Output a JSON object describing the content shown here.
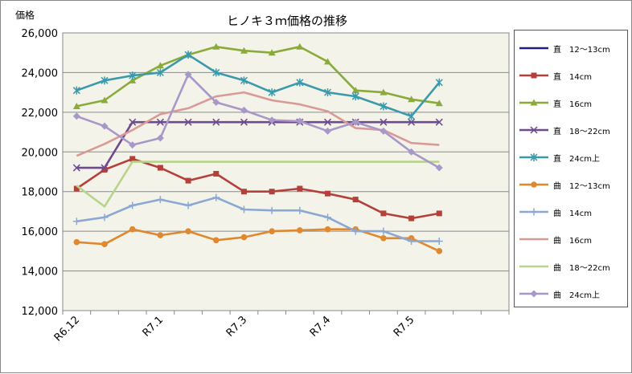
{
  "chart_data": {
    "type": "line",
    "title": "ヒノキ３ｍ価格の推移",
    "ylabel": "価格",
    "xlabel": "",
    "ylim": [
      12000,
      26000
    ],
    "yticks": [
      12000,
      14000,
      16000,
      18000,
      20000,
      22000,
      24000,
      26000
    ],
    "ytick_labels": [
      "12,000",
      "14,000",
      "16,000",
      "18,000",
      "20,000",
      "22,000",
      "24,000",
      "26,000"
    ],
    "x_point_count": 16,
    "x_tick_labels": [
      {
        "label": "R6.12",
        "index": 0
      },
      {
        "label": "R7.1",
        "index": 3
      },
      {
        "label": "R7.3",
        "index": 6
      },
      {
        "label": "R7.4",
        "index": 9
      },
      {
        "label": "R7.5",
        "index": 12
      }
    ],
    "grid": "horizontal",
    "legend_position": "right",
    "series": [
      {
        "name": "直　12～13cm",
        "color": "#1f1f7a",
        "marker": "none",
        "values": [
          null,
          null,
          null,
          null,
          null,
          null,
          null,
          null,
          null,
          null,
          null,
          null,
          null,
          null,
          null,
          null
        ]
      },
      {
        "name": "直　14cm",
        "color": "#b5403a",
        "marker": "square",
        "values": [
          18150,
          19100,
          19650,
          19200,
          18550,
          18900,
          18000,
          18000,
          18150,
          17900,
          17600,
          16900,
          16650,
          16900,
          null,
          null
        ]
      },
      {
        "name": "直　16cm",
        "color": "#8aaa3a",
        "marker": "triangle",
        "values": [
          22300,
          22600,
          23600,
          24350,
          24900,
          25300,
          25100,
          25000,
          25300,
          24550,
          23100,
          23000,
          22650,
          22450,
          null,
          null
        ]
      },
      {
        "name": "直　18～22cm",
        "color": "#6e4a8e",
        "marker": "x",
        "values": [
          19200,
          19200,
          21500,
          21500,
          21500,
          21500,
          21500,
          21500,
          21500,
          21500,
          21500,
          21500,
          21500,
          21500,
          null,
          null
        ]
      },
      {
        "name": "直　24cm上",
        "color": "#3a9aab",
        "marker": "star",
        "values": [
          23100,
          23600,
          23850,
          24000,
          24900,
          24000,
          23600,
          23000,
          23500,
          23000,
          22800,
          22300,
          21800,
          23500,
          null,
          null
        ]
      },
      {
        "name": "曲　12～13cm",
        "color": "#e0882f",
        "marker": "circle",
        "values": [
          15450,
          15350,
          16100,
          15800,
          16000,
          15550,
          15700,
          16000,
          16050,
          16100,
          16100,
          15650,
          15650,
          15000,
          null,
          null
        ]
      },
      {
        "name": "曲　14cm",
        "color": "#8aa8d2",
        "marker": "plus",
        "values": [
          16500,
          16700,
          17300,
          17600,
          17300,
          17700,
          17100,
          17050,
          17050,
          16700,
          16000,
          16000,
          15500,
          15500,
          null,
          null
        ]
      },
      {
        "name": "曲　16cm",
        "color": "#d99a95",
        "marker": "none",
        "values": [
          19800,
          20400,
          21100,
          21900,
          22200,
          22800,
          23000,
          22600,
          22400,
          22050,
          21200,
          21100,
          20450,
          20350,
          null,
          null
        ]
      },
      {
        "name": "曲　18～22cm",
        "color": "#b8d48a",
        "marker": "none",
        "values": [
          18300,
          17250,
          19500,
          19500,
          19500,
          19500,
          19500,
          19500,
          19500,
          19500,
          19500,
          19500,
          19500,
          19500,
          null,
          null
        ]
      },
      {
        "name": "曲　24cm上",
        "color": "#a898c8",
        "marker": "diamond",
        "values": [
          21800,
          21300,
          20350,
          20700,
          23900,
          22500,
          22100,
          21600,
          21550,
          21050,
          21500,
          21050,
          20000,
          19200,
          null,
          null
        ]
      }
    ]
  }
}
